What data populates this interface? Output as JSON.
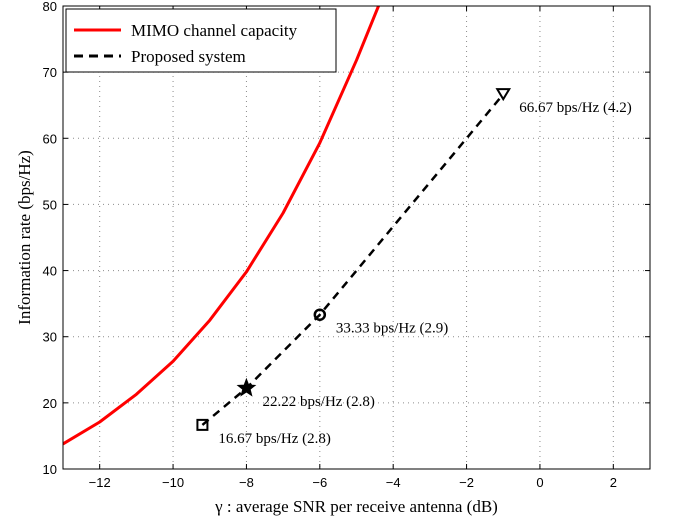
{
  "chart_data": {
    "type": "line",
    "xlabel": "γ : average SNR per receive antenna (dB)",
    "ylabel": "Information rate (bps/Hz)",
    "xlim": [
      -13,
      3
    ],
    "ylim": [
      10,
      80
    ],
    "xticks": [
      -12,
      -10,
      -8,
      -6,
      -4,
      -2,
      0,
      2
    ],
    "xtick_labels": [
      "−12",
      "−10",
      "−8",
      "−6",
      "−4",
      "−2",
      "0",
      "2"
    ],
    "yticks": [
      10,
      20,
      30,
      40,
      50,
      60,
      70,
      80
    ],
    "ytick_labels": [
      "10",
      "20",
      "30",
      "40",
      "50",
      "60",
      "70",
      "80"
    ],
    "grid": true,
    "legend_position": "top-left",
    "series": [
      {
        "name": "MIMO channel capacity",
        "style": "solid",
        "color": "#ff0000",
        "x": [
          -13,
          -12,
          -11,
          -10,
          -9,
          -8,
          -7,
          -6,
          -5,
          -4.4
        ],
        "y": [
          13.8,
          17.1,
          21.3,
          26.3,
          32.5,
          39.8,
          48.7,
          59.3,
          71.8,
          80
        ]
      },
      {
        "name": "Proposed system",
        "style": "dashed",
        "color": "#000000",
        "x": [
          -9.2,
          -8.0,
          -6.0,
          -1.0
        ],
        "y": [
          16.67,
          22.22,
          33.33,
          66.67
        ]
      }
    ],
    "annotations": [
      {
        "text": "16.67 bps/Hz (2.8)",
        "x": -9.2,
        "y": 16.67,
        "marker": "square"
      },
      {
        "text": "22.22 bps/Hz (2.8)",
        "x": -8.0,
        "y": 22.22,
        "marker": "star"
      },
      {
        "text": "33.33 bps/Hz (2.9)",
        "x": -6.0,
        "y": 33.33,
        "marker": "circle"
      },
      {
        "text": "66.67 bps/Hz (4.2)",
        "x": -1.0,
        "y": 66.67,
        "marker": "triangle"
      }
    ]
  }
}
